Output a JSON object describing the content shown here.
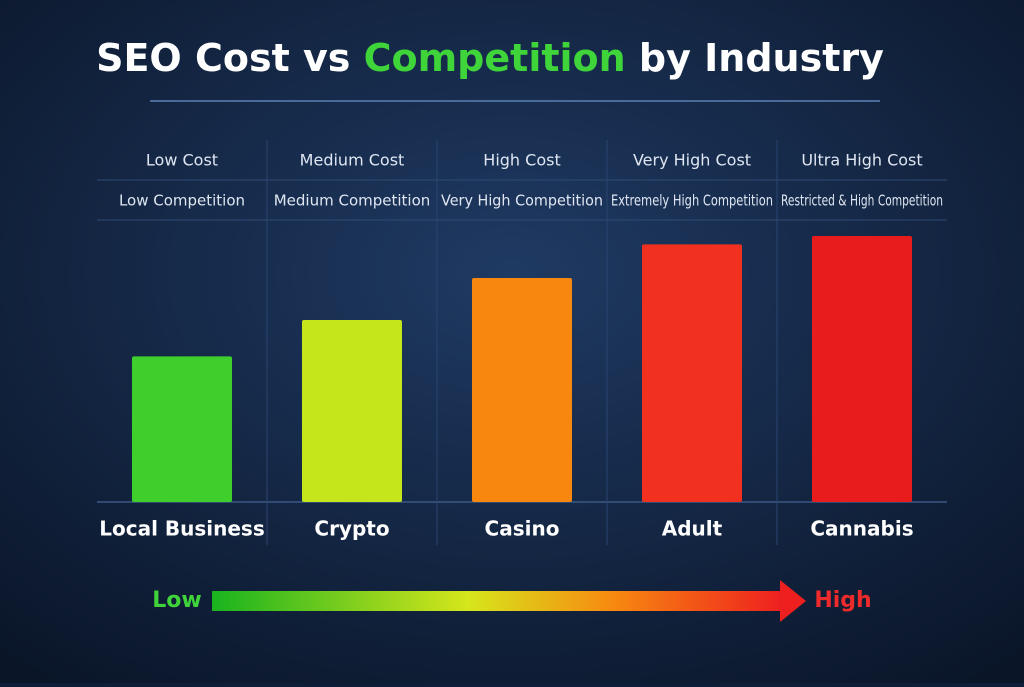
{
  "chart_data": {
    "type": "bar",
    "title_parts": [
      "SEO Cost vs ",
      "Competition",
      " by Industry"
    ],
    "categories": [
      "Local Business",
      "Crypto",
      "Casino",
      "Adult",
      "Cannabis"
    ],
    "cost_labels": [
      "Low Cost",
      "Medium Cost",
      "High Cost",
      "Very High Cost",
      "Ultra High Cost"
    ],
    "competition_labels": [
      "Low Competition",
      "Medium Competition",
      "Very High Competition",
      "Extremely High Competition",
      "Restricted & High Competition"
    ],
    "values": [
      52,
      65,
      80,
      92,
      95
    ],
    "colors": [
      "#3ecf2c",
      "#c6e61c",
      "#f7870f",
      "#f2301f",
      "#e81c1c"
    ],
    "scale_low": "Low",
    "scale_high": "High"
  }
}
